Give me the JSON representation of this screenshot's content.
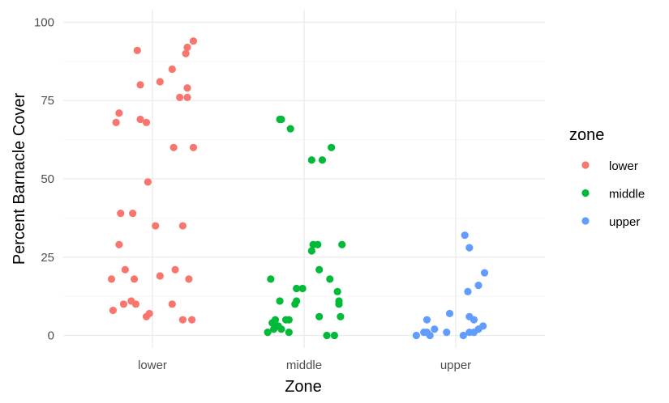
{
  "chart_data": {
    "type": "scatter",
    "title": "",
    "xlabel": "Zone",
    "ylabel": "Percent Barnacle Cover",
    "categories": [
      "lower",
      "middle",
      "upper"
    ],
    "ylim": [
      -4,
      104
    ],
    "yticks": [
      0,
      25,
      50,
      75,
      100
    ],
    "grid": true,
    "jitter": true,
    "legend": {
      "title": "zone",
      "position": "right",
      "entries": [
        "lower",
        "middle",
        "upper"
      ]
    },
    "colors": {
      "lower": "#F8766D",
      "middle": "#00BA38",
      "upper": "#619CFF"
    },
    "series": [
      {
        "name": "lower",
        "points": [
          {
            "x": -0.1,
            "y": 91
          },
          {
            "x": 0.27,
            "y": 94
          },
          {
            "x": 0.23,
            "y": 92
          },
          {
            "x": 0.22,
            "y": 90
          },
          {
            "x": 0.13,
            "y": 85
          },
          {
            "x": -0.08,
            "y": 80
          },
          {
            "x": 0.05,
            "y": 81
          },
          {
            "x": 0.23,
            "y": 79
          },
          {
            "x": 0.18,
            "y": 76
          },
          {
            "x": 0.23,
            "y": 76
          },
          {
            "x": -0.22,
            "y": 71
          },
          {
            "x": -0.24,
            "y": 68
          },
          {
            "x": -0.08,
            "y": 69
          },
          {
            "x": -0.04,
            "y": 68
          },
          {
            "x": 0.14,
            "y": 60
          },
          {
            "x": 0.27,
            "y": 60
          },
          {
            "x": -0.03,
            "y": 49
          },
          {
            "x": -0.21,
            "y": 39
          },
          {
            "x": -0.13,
            "y": 39
          },
          {
            "x": 0.02,
            "y": 35
          },
          {
            "x": 0.2,
            "y": 35
          },
          {
            "x": -0.22,
            "y": 29
          },
          {
            "x": -0.18,
            "y": 21
          },
          {
            "x": 0.15,
            "y": 21
          },
          {
            "x": -0.27,
            "y": 18
          },
          {
            "x": -0.12,
            "y": 18
          },
          {
            "x": 0.05,
            "y": 19
          },
          {
            "x": 0.24,
            "y": 18
          },
          {
            "x": -0.14,
            "y": 11
          },
          {
            "x": -0.19,
            "y": 10
          },
          {
            "x": -0.11,
            "y": 10
          },
          {
            "x": 0.13,
            "y": 10
          },
          {
            "x": -0.26,
            "y": 8
          },
          {
            "x": -0.02,
            "y": 7
          },
          {
            "x": -0.04,
            "y": 6
          },
          {
            "x": 0.2,
            "y": 5
          },
          {
            "x": 0.26,
            "y": 5
          }
        ]
      },
      {
        "name": "middle",
        "points": [
          {
            "x": -0.16,
            "y": 69
          },
          {
            "x": -0.15,
            "y": 69
          },
          {
            "x": -0.09,
            "y": 66
          },
          {
            "x": 0.05,
            "y": 56
          },
          {
            "x": 0.12,
            "y": 56
          },
          {
            "x": 0.18,
            "y": 60
          },
          {
            "x": 0.06,
            "y": 29
          },
          {
            "x": 0.09,
            "y": 29
          },
          {
            "x": 0.25,
            "y": 29
          },
          {
            "x": 0.05,
            "y": 27
          },
          {
            "x": 0.1,
            "y": 21
          },
          {
            "x": -0.22,
            "y": 18
          },
          {
            "x": 0.17,
            "y": 18
          },
          {
            "x": -0.05,
            "y": 15
          },
          {
            "x": -0.01,
            "y": 15
          },
          {
            "x": 0.22,
            "y": 14
          },
          {
            "x": -0.16,
            "y": 11
          },
          {
            "x": 0.23,
            "y": 11
          },
          {
            "x": -0.05,
            "y": 11
          },
          {
            "x": -0.06,
            "y": 10
          },
          {
            "x": 0.23,
            "y": 10
          },
          {
            "x": -0.19,
            "y": 5
          },
          {
            "x": -0.21,
            "y": 4
          },
          {
            "x": -0.12,
            "y": 5
          },
          {
            "x": -0.1,
            "y": 5
          },
          {
            "x": 0.1,
            "y": 6
          },
          {
            "x": 0.24,
            "y": 6
          },
          {
            "x": -0.17,
            "y": 3
          },
          {
            "x": -0.2,
            "y": 2
          },
          {
            "x": -0.15,
            "y": 2
          },
          {
            "x": -0.24,
            "y": 1
          },
          {
            "x": -0.1,
            "y": 1
          },
          {
            "x": 0.15,
            "y": 0
          },
          {
            "x": 0.2,
            "y": 0
          }
        ]
      },
      {
        "name": "upper",
        "points": [
          {
            "x": 0.06,
            "y": 32
          },
          {
            "x": 0.09,
            "y": 28
          },
          {
            "x": 0.19,
            "y": 20
          },
          {
            "x": 0.15,
            "y": 16
          },
          {
            "x": 0.08,
            "y": 14
          },
          {
            "x": -0.04,
            "y": 7
          },
          {
            "x": 0.09,
            "y": 6
          },
          {
            "x": 0.12,
            "y": 5
          },
          {
            "x": -0.19,
            "y": 5
          },
          {
            "x": -0.14,
            "y": 2
          },
          {
            "x": -0.06,
            "y": 1
          },
          {
            "x": 0.18,
            "y": 3
          },
          {
            "x": 0.15,
            "y": 2
          },
          {
            "x": 0.12,
            "y": 1
          },
          {
            "x": 0.09,
            "y": 1
          },
          {
            "x": 0.05,
            "y": 0
          },
          {
            "x": -0.21,
            "y": 1
          },
          {
            "x": -0.26,
            "y": 0
          },
          {
            "x": -0.17,
            "y": 0
          },
          {
            "x": -0.19,
            "y": 1
          }
        ]
      }
    ]
  }
}
